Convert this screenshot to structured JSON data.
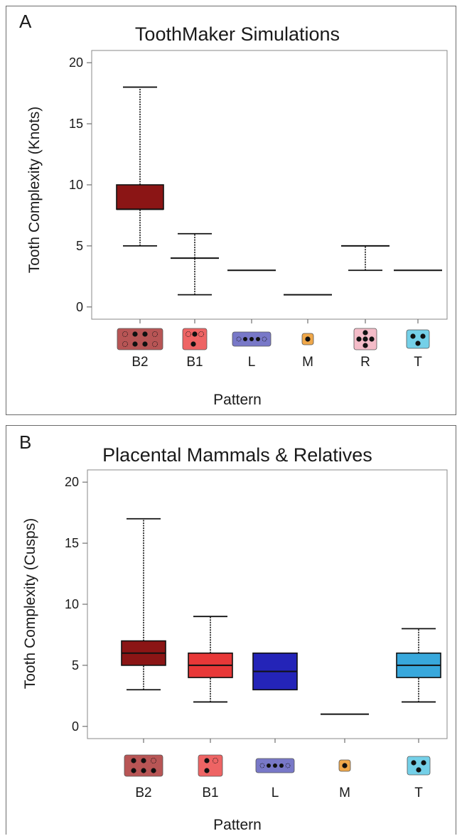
{
  "chart_data": [
    {
      "panel_letter": "A",
      "type": "box",
      "title": "ToothMaker Simulations",
      "xlabel": "Pattern",
      "ylabel": "Tooth Complexity (Knots)",
      "ylim": [
        -1,
        21
      ],
      "yticks": [
        "0",
        "5",
        "10",
        "15",
        "20"
      ],
      "grid": false,
      "categories": [
        "B2",
        "B1",
        "L",
        "M",
        "R",
        "T"
      ],
      "boxes": [
        {
          "cat": "B2",
          "min": 5,
          "q1": 8,
          "median": 8,
          "q3": 10,
          "max": 18,
          "color": "#8b1515"
        },
        {
          "cat": "B1",
          "min": 1,
          "q1": 4,
          "median": 4,
          "q3": 4,
          "max": 6,
          "color": "#e83838"
        },
        {
          "cat": "L",
          "min": 3,
          "q1": 3,
          "median": 3,
          "q3": 3,
          "max": 3,
          "color": "#2e2eb8"
        },
        {
          "cat": "M",
          "min": 1,
          "q1": 1,
          "median": 1,
          "q3": 1,
          "max": 1,
          "color": "#f0a020"
        },
        {
          "cat": "R",
          "min": 3,
          "q1": 5,
          "median": 5,
          "q3": 5,
          "max": 5,
          "color": "#f0a8b8"
        },
        {
          "cat": "T",
          "min": 3,
          "q1": 3,
          "median": 3,
          "q3": 3,
          "max": 3,
          "color": "#40b0dc"
        }
      ],
      "icons": [
        {
          "cat": "B2",
          "fill": "#b85555",
          "dots": [
            "o",
            "f",
            "f",
            "o",
            "o",
            "f",
            "f",
            "o"
          ],
          "layout": "2x4"
        },
        {
          "cat": "B1",
          "fill": "#ee6464",
          "dots": [
            "o",
            "f",
            "o",
            "f"
          ],
          "layout": "b1"
        },
        {
          "cat": "L",
          "fill": "#7878c8",
          "dots": [
            "o",
            "f",
            "f",
            "f",
            "o"
          ],
          "layout": "row5"
        },
        {
          "cat": "M",
          "fill": "#f0a84a",
          "dots": [
            "f"
          ],
          "layout": "single"
        },
        {
          "cat": "R",
          "fill": "#f4bcc8",
          "dots": [
            "f",
            "f",
            "f",
            "f",
            "f"
          ],
          "layout": "cross"
        },
        {
          "cat": "T",
          "fill": "#74d0e8",
          "dots": [
            "f",
            "f",
            "f"
          ],
          "layout": "tri"
        }
      ]
    },
    {
      "panel_letter": "B",
      "type": "box",
      "title": "Placental Mammals & Relatives",
      "xlabel": "Pattern",
      "ylabel": "Tooth Complexity (Cusps)",
      "ylim": [
        -1,
        21
      ],
      "yticks": [
        "0",
        "5",
        "10",
        "15",
        "20"
      ],
      "grid": false,
      "categories": [
        "B2",
        "B1",
        "L",
        "M",
        "T"
      ],
      "boxes": [
        {
          "cat": "B2",
          "min": 3,
          "q1": 5,
          "median": 6,
          "q3": 7,
          "max": 17,
          "color": "#8b1515"
        },
        {
          "cat": "B1",
          "min": 2,
          "q1": 4,
          "median": 5,
          "q3": 6,
          "max": 9,
          "color": "#e83838"
        },
        {
          "cat": "L",
          "min": 3,
          "q1": 3,
          "median": 4.5,
          "q3": 6,
          "max": 6,
          "color": "#2424b8"
        },
        {
          "cat": "M",
          "min": 1,
          "q1": 1,
          "median": 1,
          "q3": 1,
          "max": 1,
          "color": "#f0a020"
        },
        {
          "cat": "T",
          "min": 2,
          "q1": 4,
          "median": 5,
          "q3": 6,
          "max": 8,
          "color": "#38a8dc"
        }
      ],
      "icons": [
        {
          "cat": "B2",
          "fill": "#b85555",
          "dots": [
            "f",
            "f",
            "o",
            "f",
            "f",
            "f"
          ],
          "layout": "2x3"
        },
        {
          "cat": "B1",
          "fill": "#ee6464",
          "dots": [
            "f",
            "o",
            "f"
          ],
          "layout": "b1b"
        },
        {
          "cat": "L",
          "fill": "#7878c8",
          "dots": [
            "o",
            "f",
            "f",
            "f",
            "o"
          ],
          "layout": "row5"
        },
        {
          "cat": "M",
          "fill": "#f0a84a",
          "dots": [
            "f"
          ],
          "layout": "single"
        },
        {
          "cat": "T",
          "fill": "#74d0e8",
          "dots": [
            "f",
            "f",
            "f"
          ],
          "layout": "tri"
        }
      ]
    }
  ]
}
